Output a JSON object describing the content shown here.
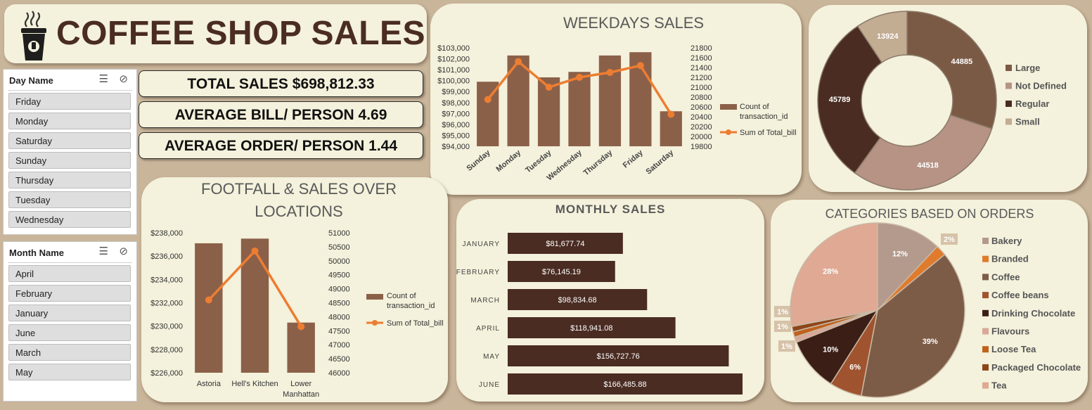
{
  "header": {
    "title": "COFFEE SHOP SALES"
  },
  "colors": {
    "brown": "#8b6049",
    "orange": "#ed7d31",
    "dark": "#4a2c22",
    "panel": "#f4f1dc"
  },
  "slicers": {
    "day": {
      "title": "Day Name",
      "items": [
        "Friday",
        "Monday",
        "Saturday",
        "Sunday",
        "Thursday",
        "Tuesday",
        "Wednesday"
      ]
    },
    "month": {
      "title": "Month Name",
      "items": [
        "April",
        "February",
        "January",
        "June",
        "March",
        "May"
      ]
    }
  },
  "kpis": {
    "total_sales": "TOTAL SALES $698,812.33",
    "avg_bill": "AVERAGE BILL/ PERSON 4.69",
    "avg_order": "AVERAGE ORDER/ PERSON 1.44"
  },
  "chart_data": [
    {
      "id": "weekdays",
      "type": "bar",
      "title": "WEEKDAYS SALES",
      "categories": [
        "Sunday",
        "Monday",
        "Tuesday",
        "Wednesday",
        "Thursday",
        "Friday",
        "Saturday"
      ],
      "series": [
        {
          "name": "Count of transaction_id",
          "kind": "bar",
          "axis": "left",
          "values": [
            99900,
            102300,
            100300,
            100800,
            102300,
            102600,
            97200
          ]
        },
        {
          "name": "Sum of Total_bill",
          "kind": "line",
          "axis": "right",
          "values": [
            20750,
            21520,
            21000,
            21200,
            21300,
            21440,
            20450
          ]
        }
      ],
      "y_left": {
        "min": 94000,
        "max": 103000,
        "step": 1000,
        "ticks": [
          "$94,000",
          "$95,000",
          "$96,000",
          "$97,000",
          "$98,000",
          "$99,000",
          "$100,000",
          "$101,000",
          "$102,000",
          "$103,000"
        ]
      },
      "y_right": {
        "min": 19800,
        "max": 21800,
        "step": 200,
        "ticks": [
          "19800",
          "20000",
          "20200",
          "20400",
          "20600",
          "20800",
          "21000",
          "21200",
          "21400",
          "21600",
          "21800"
        ]
      },
      "legend": "right"
    },
    {
      "id": "size",
      "type": "pie",
      "donut": true,
      "title": "",
      "labels": [
        "Large",
        "Not Defined",
        "Regular",
        "Small"
      ],
      "values": [
        44885,
        44518,
        45789,
        13924
      ],
      "value_labels": [
        "44885",
        "44518",
        "45789",
        "13924"
      ],
      "colors": [
        "#7b5a45",
        "#b69384",
        "#4a2c22",
        "#c2ac92"
      ],
      "legend": "right"
    },
    {
      "id": "locations",
      "type": "bar",
      "title": "FOOTFALL & SALES OVER LOCATIONS",
      "title_lines": [
        "FOOTFALL & SALES OVER",
        "LOCATIONS"
      ],
      "categories": [
        "Astoria",
        "Hell's Kitchen",
        "Lower Manhattan"
      ],
      "category_lines": [
        [
          "Astoria"
        ],
        [
          "Hell's Kitchen"
        ],
        [
          "Lower",
          "Manhattan"
        ]
      ],
      "series": [
        {
          "name": "Count of transaction_id",
          "kind": "bar",
          "axis": "left",
          "values": [
            237100,
            237500,
            230300
          ]
        },
        {
          "name": "Sum of Total_bill",
          "kind": "line",
          "axis": "right",
          "values": [
            48600,
            50350,
            47650
          ]
        }
      ],
      "y_left": {
        "min": 226000,
        "max": 238000,
        "step": 2000,
        "ticks": [
          "$226,000",
          "$228,000",
          "$230,000",
          "$232,000",
          "$234,000",
          "$236,000",
          "$238,000"
        ]
      },
      "y_right": {
        "min": 46000,
        "max": 51000,
        "step": 500,
        "ticks": [
          "46000",
          "46500",
          "47000",
          "47500",
          "48000",
          "48500",
          "49000",
          "49500",
          "50000",
          "50500",
          "51000"
        ]
      },
      "legend_lines": [
        [
          "Count of",
          "transaction_id"
        ],
        [
          "Sum of Total_bill"
        ]
      ],
      "legend": "right"
    },
    {
      "id": "monthly",
      "type": "bar",
      "orientation": "horizontal",
      "title": "MONTHLY SALES",
      "categories": [
        "JANUARY",
        "FEBRUARY",
        "MARCH",
        "APRIL",
        "MAY",
        "JUNE"
      ],
      "values": [
        81677.74,
        76145.19,
        98834.68,
        118941.08,
        156727.76,
        166485.88
      ],
      "value_labels": [
        "$81,677.74",
        "$76,145.19",
        "$98,834.68",
        "$118,941.08",
        "$156,727.76",
        "$166,485.88"
      ],
      "color": "#4a2c22"
    },
    {
      "id": "categories",
      "type": "pie",
      "title": "CATEGORIES BASED ON ORDERS",
      "labels": [
        "Bakery",
        "Branded",
        "Coffee",
        "Coffee beans",
        "Drinking Chocolate",
        "Flavours",
        "Loose Tea",
        "Packaged Chocolate",
        "Tea"
      ],
      "values": [
        12,
        2,
        39,
        6,
        10,
        1,
        1,
        1,
        28
      ],
      "value_labels": [
        "12%",
        "2%",
        "39%",
        "6%",
        "10%",
        "1%",
        "1%",
        "1%",
        "28%"
      ],
      "colors": [
        "#b39a8c",
        "#e07b2c",
        "#7d5c47",
        "#a0532f",
        "#3b1f17",
        "#d8a898",
        "#c0611d",
        "#8c4519",
        "#dfa994"
      ],
      "legend": "right"
    }
  ]
}
